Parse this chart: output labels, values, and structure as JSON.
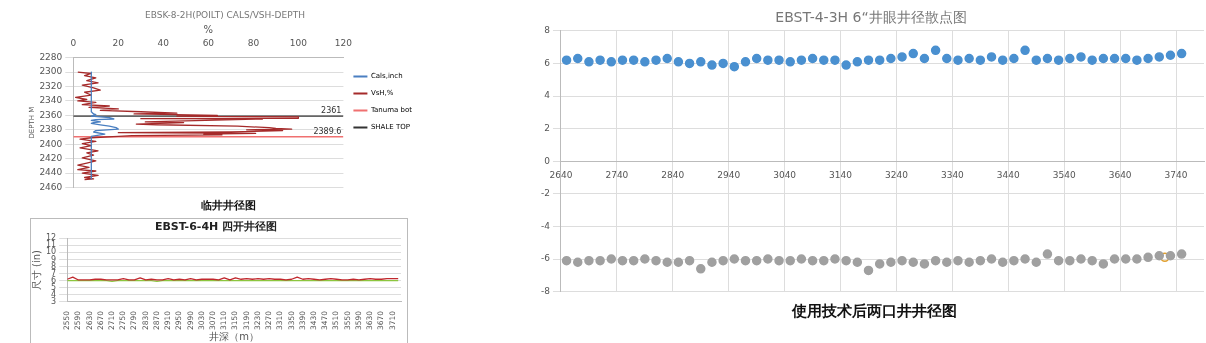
{
  "chart_data": [
    {
      "type": "line",
      "title": "EBSK-8-2H(POILT) CALS/VSH-DEPTH",
      "xlabel": "%",
      "ylabel": "DEPTH M",
      "xlim": [
        0,
        120
      ],
      "xticks": [
        0,
        20,
        40,
        60,
        80,
        100,
        120
      ],
      "ylim": [
        2460,
        2280
      ],
      "yticks": [
        2280,
        2300,
        2320,
        2340,
        2360,
        2380,
        2400,
        2420,
        2440,
        2460
      ],
      "grid": "y",
      "legend": "right",
      "marker": "none",
      "series": [
        {
          "name": "Cals,inch",
          "color": "#4a7fc1",
          "x": [
            8,
            8,
            9,
            10,
            8,
            12,
            16,
            18,
            10,
            8,
            12,
            9,
            8,
            12,
            16,
            19,
            20,
            10,
            9,
            14,
            8,
            8
          ],
          "values": [
            2300,
            2355,
            2358,
            2359,
            2361,
            2362,
            2363,
            2365,
            2366,
            2367,
            2369,
            2370,
            2371,
            2373,
            2375,
            2377,
            2379,
            2381,
            2383,
            2386,
            2389,
            2448
          ]
        },
        {
          "name": "VsH,%",
          "color": "#a52a2a",
          "x": [
            2,
            8,
            5,
            10,
            6,
            11,
            4,
            9,
            12,
            5,
            8,
            1,
            6,
            2,
            10,
            4,
            16,
            7,
            20,
            12,
            30,
            46,
            27,
            64,
            46,
            100,
            100,
            30,
            84,
            72,
            32,
            49,
            28,
            37,
            73,
            87,
            90,
            97,
            77,
            93,
            70,
            20,
            81,
            58,
            66,
            26,
            20,
            8,
            3,
            10,
            4,
            8,
            3,
            11,
            6,
            9,
            4,
            10,
            6,
            2,
            7,
            2,
            10,
            4,
            11,
            5,
            9,
            5
          ],
          "values": [
            2300,
            2302,
            2305,
            2308,
            2312,
            2315,
            2318,
            2322,
            2325,
            2328,
            2332,
            2335,
            2338,
            2340,
            2342,
            2345,
            2347,
            2349,
            2351,
            2353,
            2355,
            2357,
            2358,
            2360,
            2361,
            2362,
            2364,
            2364.5,
            2365,
            2366,
            2369,
            2370,
            2372,
            2373,
            2375,
            2377,
            2378,
            2379,
            2380,
            2381,
            2383,
            2384,
            2385,
            2386,
            2387,
            2388,
            2389,
            2391,
            2393,
            2396,
            2399,
            2402,
            2405,
            2409,
            2412,
            2415,
            2419,
            2423,
            2426,
            2429,
            2432,
            2435,
            2437,
            2440,
            2443,
            2446,
            2448,
            2449
          ]
        },
        {
          "name": "Tanuma bot",
          "color": "#f07070",
          "x": [
            0,
            120
          ],
          "values": [
            2389.6,
            2389.6
          ]
        },
        {
          "name": "SHALE TOP",
          "color": "#333333",
          "x": [
            0,
            120
          ],
          "values": [
            2361,
            2361
          ]
        }
      ],
      "annotations": [
        {
          "text": "2361",
          "x": 120,
          "y": 2361
        },
        {
          "text": "2389.6",
          "x": 120,
          "y": 2389.6
        },
        "临井井径图"
      ]
    },
    {
      "type": "line",
      "title": "EBST-6-4H 四开井径图",
      "xlabel": "井深（m）",
      "ylabel": "尺寸 (in)",
      "xlim": [
        2550,
        3740
      ],
      "xticks": [
        2550,
        2590,
        2630,
        2670,
        2710,
        2750,
        2790,
        2830,
        2870,
        2910,
        2950,
        2990,
        3030,
        3070,
        3110,
        3150,
        3190,
        3230,
        3270,
        3310,
        3350,
        3390,
        3430,
        3470,
        3510,
        3550,
        3590,
        3630,
        3670,
        3710
      ],
      "ylim": [
        3,
        12
      ],
      "yticks": [
        3,
        4,
        5,
        6,
        7,
        8,
        9,
        10,
        11,
        12
      ],
      "grid": "y",
      "marker": "none",
      "x": [
        2550,
        2570,
        2590,
        2610,
        2630,
        2650,
        2670,
        2690,
        2710,
        2730,
        2750,
        2770,
        2790,
        2810,
        2830,
        2850,
        2870,
        2890,
        2910,
        2930,
        2950,
        2970,
        2990,
        3010,
        3030,
        3050,
        3070,
        3090,
        3110,
        3130,
        3150,
        3170,
        3190,
        3210,
        3230,
        3250,
        3270,
        3290,
        3310,
        3330,
        3350,
        3370,
        3390,
        3410,
        3430,
        3450,
        3470,
        3490,
        3510,
        3530,
        3550,
        3570,
        3590,
        3610,
        3630,
        3650,
        3670,
        3690,
        3710,
        3730
      ],
      "series": [
        {
          "color": "#c0282d",
          "values": [
            6.2,
            6.5,
            6.1,
            6.1,
            6.1,
            6.2,
            6.2,
            6.1,
            6.1,
            6.1,
            6.3,
            6.1,
            6.1,
            6.4,
            6.1,
            6.2,
            6.1,
            6.1,
            6.3,
            6.1,
            6.2,
            6.1,
            6.3,
            6.1,
            6.2,
            6.2,
            6.2,
            6.1,
            6.4,
            6.1,
            6.4,
            6.2,
            6.3,
            6.2,
            6.3,
            6.2,
            6.3,
            6.2,
            6.2,
            6.1,
            6.2,
            6.5,
            6.2,
            6.3,
            6.2,
            6.1,
            6.2,
            6.3,
            6.2,
            6.1,
            6.1,
            6.2,
            6.1,
            6.2,
            6.3,
            6.2,
            6.2,
            6.3,
            6.3,
            6.3
          ]
        },
        {
          "color": "#8cc63f",
          "values": [
            6,
            6,
            6,
            6,
            6,
            6,
            6,
            6,
            5.9,
            6,
            6,
            6,
            6,
            6,
            6,
            6,
            5.9,
            6,
            6,
            6,
            6,
            6,
            6,
            6,
            6,
            6,
            6,
            6,
            6,
            6,
            6,
            6,
            6,
            6,
            6,
            6,
            6,
            6,
            6,
            6,
            6,
            6,
            6,
            6,
            6,
            6,
            6,
            6,
            6,
            6,
            6,
            6,
            6,
            6,
            6,
            6,
            6,
            6,
            6,
            6
          ]
        }
      ]
    },
    {
      "type": "scatter",
      "title": "EBST-4-3H 6“井眼井径散点图",
      "xlim": [
        2640,
        3790
      ],
      "xticks": [
        2640,
        2740,
        2840,
        2940,
        3040,
        3140,
        3240,
        3340,
        3440,
        3540,
        3640,
        3740
      ],
      "ylim": [
        -8,
        8
      ],
      "yticks": [
        -8,
        -6,
        -4,
        -2,
        0,
        2,
        4,
        6,
        8
      ],
      "grid": true,
      "marker": "circle",
      "x": [
        2650,
        2670,
        2690,
        2710,
        2730,
        2750,
        2770,
        2790,
        2810,
        2830,
        2850,
        2870,
        2890,
        2910,
        2930,
        2950,
        2970,
        2990,
        3010,
        3030,
        3050,
        3070,
        3090,
        3110,
        3130,
        3150,
        3170,
        3190,
        3210,
        3230,
        3250,
        3270,
        3290,
        3310,
        3330,
        3350,
        3370,
        3390,
        3410,
        3430,
        3450,
        3470,
        3490,
        3510,
        3530,
        3550,
        3570,
        3590,
        3610,
        3630,
        3650,
        3670,
        3690,
        3710,
        3730,
        3750
      ],
      "series": [
        {
          "color": "#4a90d0",
          "values": [
            6.2,
            6.3,
            6.1,
            6.2,
            6.1,
            6.2,
            6.2,
            6.1,
            6.2,
            6.3,
            6.1,
            6.0,
            6.1,
            5.9,
            6.0,
            5.8,
            6.1,
            6.3,
            6.2,
            6.2,
            6.1,
            6.2,
            6.3,
            6.2,
            6.2,
            5.9,
            6.1,
            6.2,
            6.2,
            6.3,
            6.4,
            6.6,
            6.3,
            6.8,
            6.3,
            6.2,
            6.3,
            6.2,
            6.4,
            6.2,
            6.3,
            6.8,
            6.2,
            6.3,
            6.2,
            6.3,
            6.4,
            6.2,
            6.3,
            6.3,
            6.3,
            6.2,
            6.3,
            6.4,
            6.5,
            6.6
          ]
        },
        {
          "color": "#a0a0a0",
          "values": [
            -6.1,
            -6.2,
            -6.1,
            -6.1,
            -6.0,
            -6.1,
            -6.1,
            -6.0,
            -6.1,
            -6.2,
            -6.2,
            -6.1,
            -6.6,
            -6.2,
            -6.1,
            -6.0,
            -6.1,
            -6.1,
            -6.0,
            -6.1,
            -6.1,
            -6.0,
            -6.1,
            -6.1,
            -6.0,
            -6.1,
            -6.2,
            -6.7,
            -6.3,
            -6.2,
            -6.1,
            -6.2,
            -6.3,
            -6.1,
            -6.2,
            -6.1,
            -6.2,
            -6.1,
            -6.0,
            -6.2,
            -6.1,
            -6.0,
            -6.2,
            -5.7,
            -6.1,
            -6.1,
            -6.0,
            -6.1,
            -6.3,
            -6.0,
            -6.0,
            -6.0,
            -5.9,
            -5.8,
            -5.8,
            -5.7
          ]
        },
        {
          "color": "#e0a030",
          "x": [
            3720
          ],
          "values": [
            -5.9
          ]
        }
      ],
      "annotations": [
        "使用技术后两口井井径图"
      ]
    }
  ]
}
